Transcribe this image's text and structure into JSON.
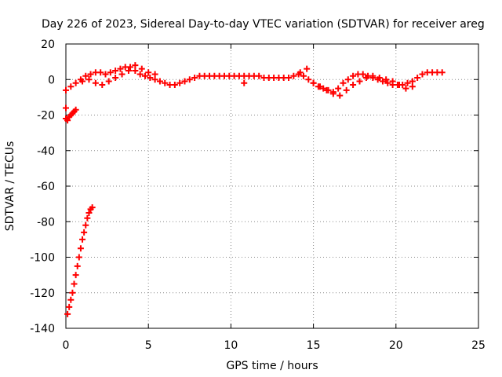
{
  "chart_data": {
    "type": "scatter",
    "title": "Day 226 of 2023, Sidereal Day-to-day VTEC variation (SDTVAR) for receiver areg",
    "xlabel": "GPS time / hours",
    "ylabel": "SDTVAR / TECUs",
    "xlim": [
      0,
      25
    ],
    "ylim": [
      -140,
      20
    ],
    "xticks": [
      0,
      5,
      10,
      15,
      20,
      25
    ],
    "yticks": [
      20,
      0,
      -20,
      -40,
      -60,
      -80,
      -100,
      -120,
      -140
    ],
    "grid": true,
    "marker": "+",
    "series": [
      {
        "name": "SDTVAR",
        "color": "#ff0000",
        "x": [
          0.0,
          0.3,
          0.6,
          0.9,
          1.2,
          1.5,
          1.8,
          2.1,
          2.4,
          2.7,
          3.0,
          3.3,
          3.6,
          3.9,
          4.2,
          4.5,
          4.8,
          5.1,
          5.4,
          5.7,
          6.0,
          6.3,
          6.6,
          6.9,
          7.2,
          7.5,
          7.8,
          8.1,
          8.4,
          8.7,
          9.0,
          9.3,
          9.6,
          9.9,
          10.2,
          10.5,
          10.8,
          11.1,
          11.4,
          11.7,
          12.0,
          12.3,
          12.6,
          12.9,
          13.2,
          13.5,
          13.8,
          14.1,
          14.4,
          14.7,
          15.0,
          15.3,
          15.6,
          15.9,
          16.2,
          16.5,
          16.8,
          17.1,
          17.4,
          17.7,
          18.0,
          18.3,
          18.6,
          18.9,
          19.2,
          19.5,
          19.8,
          20.1,
          20.4,
          20.7,
          21.0,
          21.3,
          21.6,
          21.9,
          22.2,
          22.5,
          22.8,
          1.0,
          1.4,
          1.8,
          2.2,
          2.6,
          3.0,
          3.4,
          3.8,
          4.2,
          4.6,
          5.0,
          5.4,
          14.2,
          14.6,
          15.0,
          15.4,
          15.8,
          16.2,
          16.6,
          17.0,
          17.4,
          17.8,
          18.2,
          18.6,
          19.0,
          19.4,
          19.8,
          20.2,
          20.6,
          21.0,
          10.8,
          0.0,
          0.1,
          0.2,
          0.3,
          0.4,
          0.5,
          0.6,
          0.0,
          0.1,
          0.2,
          0.3,
          0.4,
          0.5,
          0.6,
          0.7,
          0.8,
          0.9,
          1.0,
          1.1,
          1.2,
          1.3,
          1.4,
          1.5,
          1.6
        ],
        "y": [
          -6,
          -4,
          -2,
          0,
          2,
          3,
          4,
          4,
          3,
          4,
          5,
          6,
          7,
          7,
          5,
          3,
          2,
          1,
          0,
          -1,
          -2,
          -3,
          -3,
          -2,
          -1,
          0,
          1,
          2,
          2,
          2,
          2,
          2,
          2,
          2,
          2,
          2,
          2,
          2,
          2,
          2,
          1,
          1,
          1,
          1,
          1,
          1,
          2,
          3,
          2,
          0,
          -2,
          -4,
          -5,
          -6,
          -7,
          -5,
          -2,
          0,
          2,
          3,
          3,
          2,
          1,
          0,
          -1,
          -2,
          -3,
          -3,
          -3,
          -2,
          -1,
          1,
          3,
          4,
          4,
          4,
          4,
          -1,
          0,
          -2,
          -3,
          -1,
          1,
          3,
          5,
          8,
          6,
          4,
          3,
          4,
          6,
          -2,
          -4,
          -6,
          -8,
          -9,
          -6,
          -3,
          -1,
          1,
          2,
          1,
          0,
          -1,
          -3,
          -5,
          -4,
          -2,
          -22,
          -23,
          -21,
          -20,
          -19,
          -18,
          -17,
          -16,
          -132,
          -128,
          -124,
          -120,
          -115,
          -110,
          -105,
          -100,
          -95,
          -90,
          -86,
          -82,
          -78,
          -75,
          -73,
          -72
        ]
      }
    ]
  }
}
